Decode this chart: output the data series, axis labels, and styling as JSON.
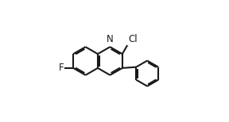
{
  "bg_color": "#ffffff",
  "line_color": "#1a1a1a",
  "line_width": 1.5,
  "font_size_atom": 8.5,
  "ring_r": 0.105,
  "ph_r": 0.095,
  "xlim": [
    0.0,
    1.0
  ],
  "ylim": [
    0.05,
    0.95
  ]
}
